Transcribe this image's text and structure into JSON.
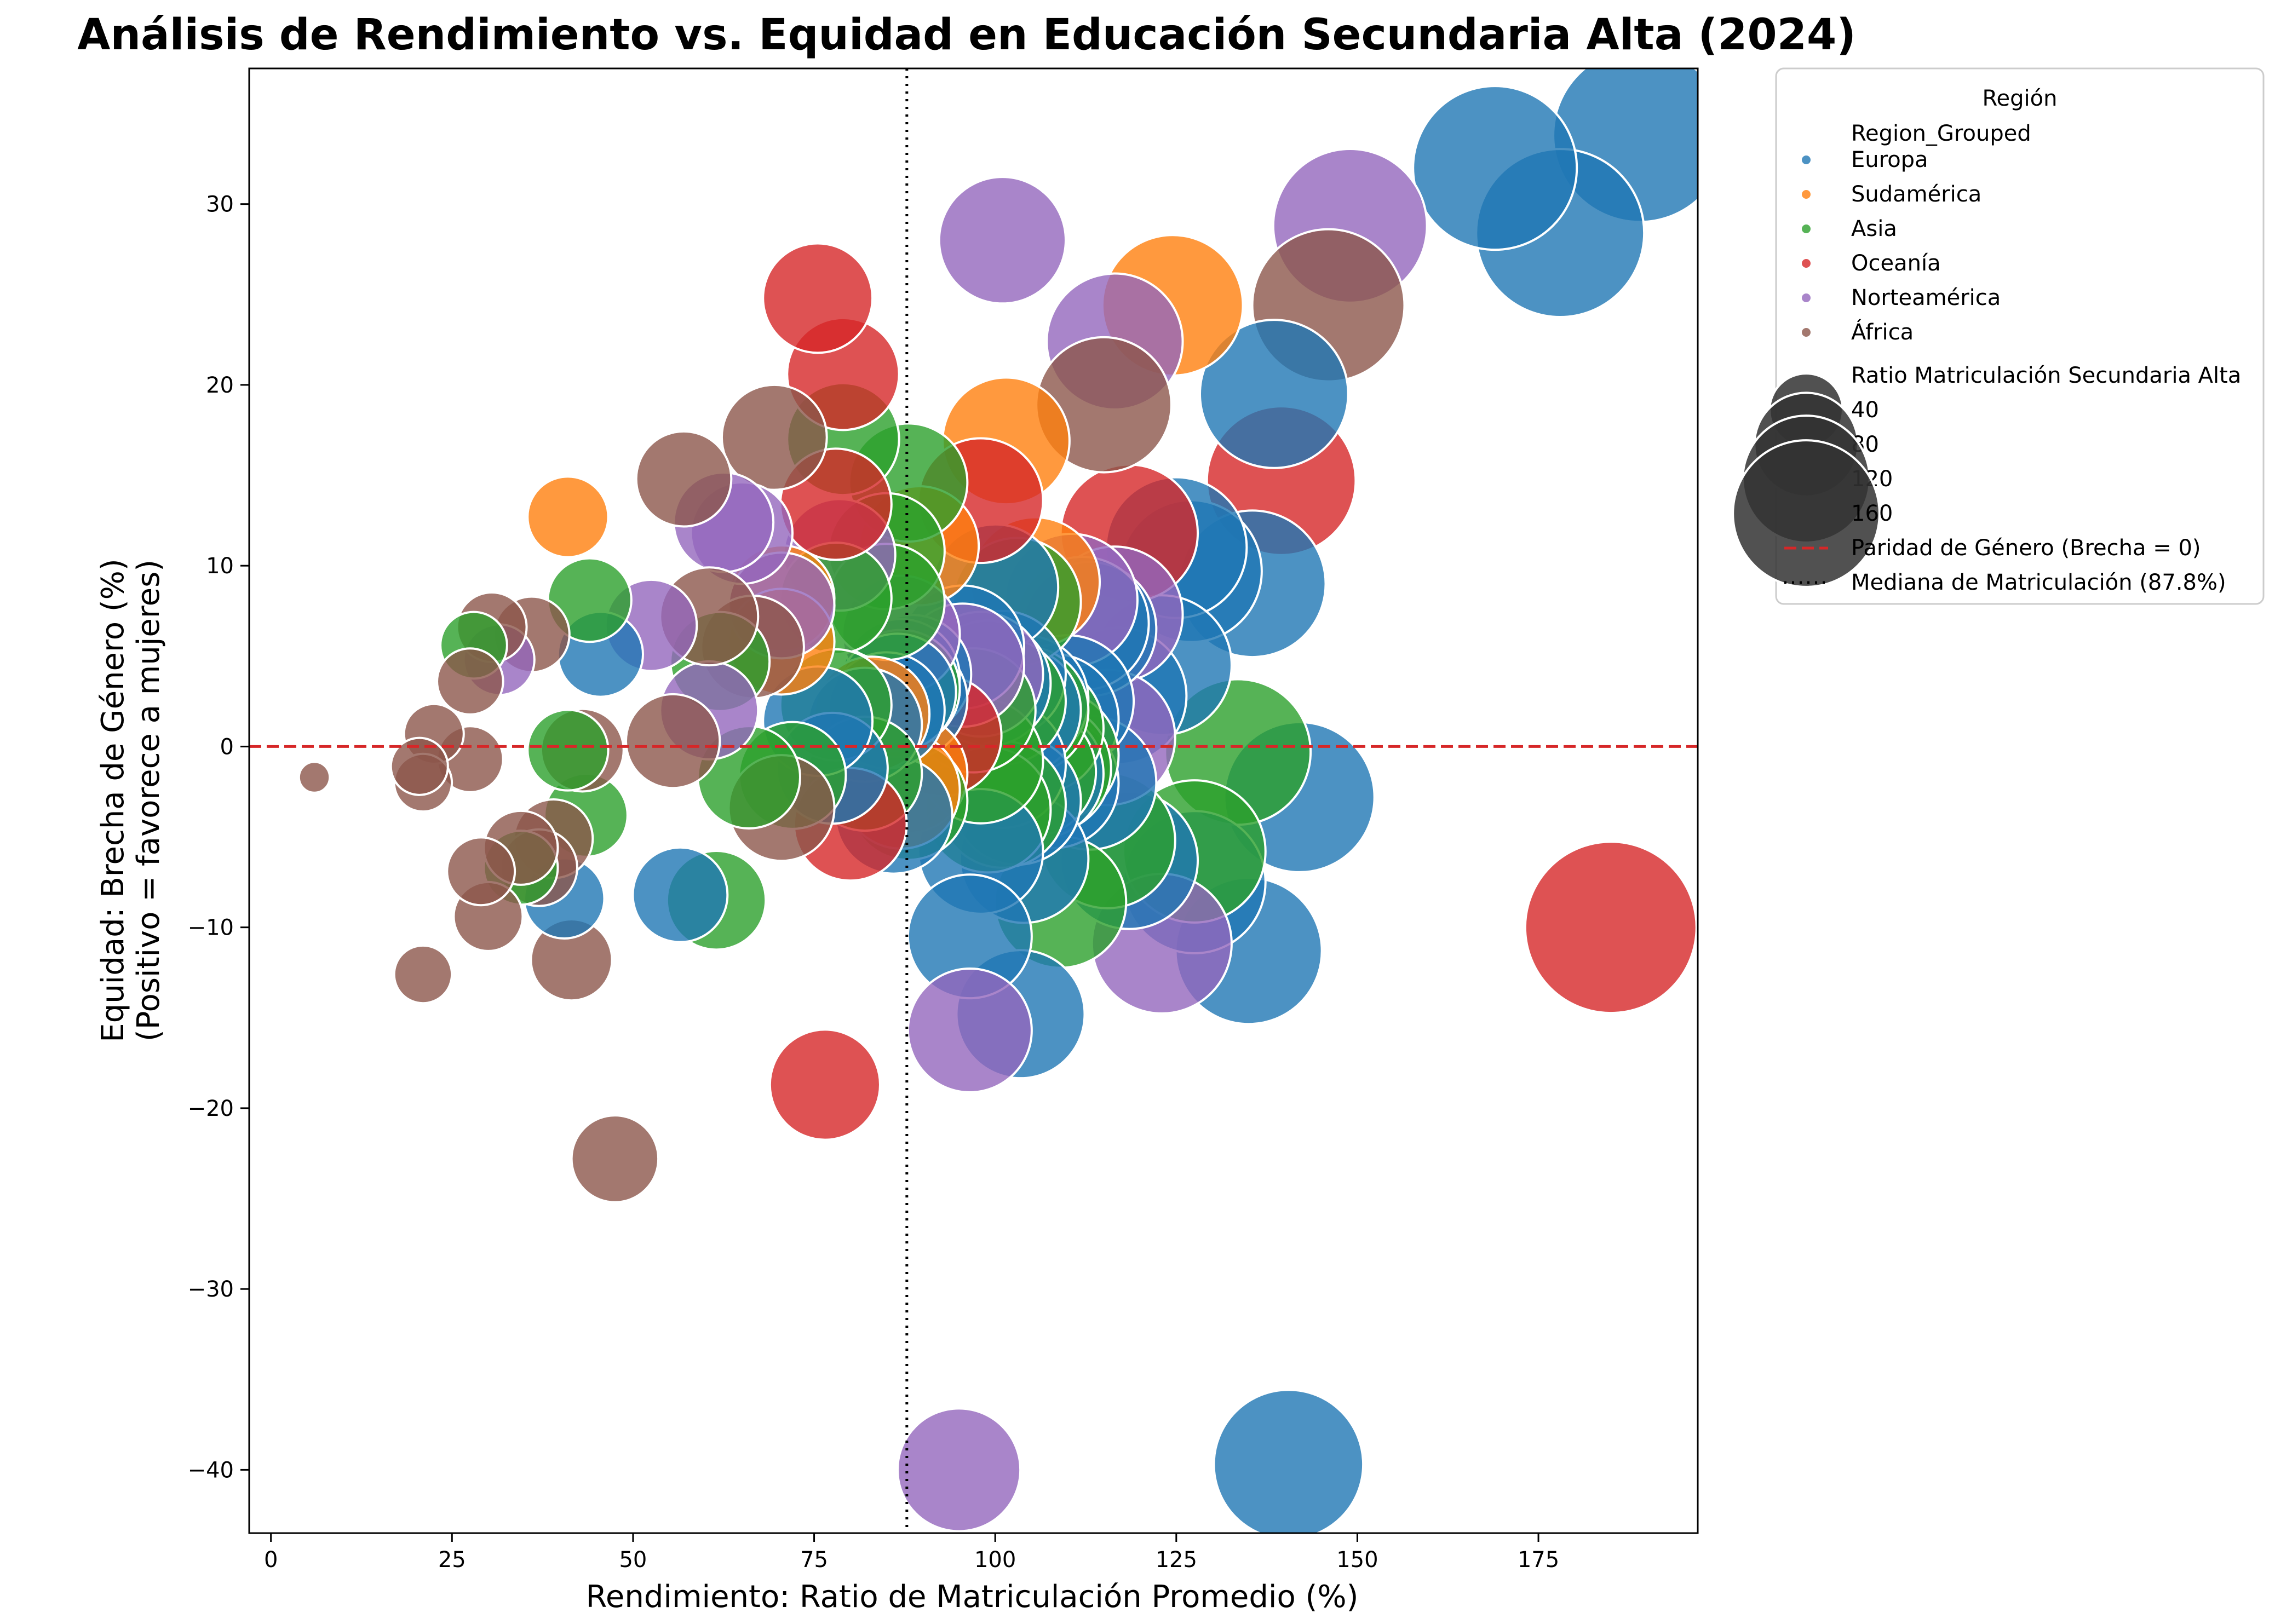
{
  "chart_data": {
    "type": "scatter",
    "title": "Análisis de Rendimiento vs. Equidad en Educación Secundaria Alta (2024)",
    "xlabel": "Rendimiento: Ratio de Matriculación Promedio (%)",
    "ylabel_lines": [
      "Equidad: Brecha de Género (%)",
      "(Positivo = favorece a mujeres)"
    ],
    "xlim": [
      -3,
      197
    ],
    "ylim": [
      -43.5,
      37.5
    ],
    "xticks": [
      0,
      25,
      50,
      75,
      100,
      125,
      150,
      175
    ],
    "yticks": [
      -40,
      -30,
      -20,
      -10,
      0,
      10,
      20,
      30
    ],
    "grid": false,
    "size_scale": "sqrt(enrollment ratio)",
    "reference_lines": [
      {
        "type": "horizontal",
        "value": 0,
        "color": "#d62728",
        "style": "dashed",
        "label": "Paridad de Género (Brecha = 0)"
      },
      {
        "type": "vertical",
        "value": 87.8,
        "color": "#000000",
        "style": "dotted",
        "label": "Mediana de Matriculación (87.8%)"
      }
    ],
    "legend": {
      "placement": "outside-right",
      "title": "Región",
      "hue_title": "Region_Grouped",
      "size_title": "Ratio Matriculación Secundaria Alta",
      "sizes": [
        40,
        80,
        120,
        160
      ]
    },
    "series": [
      {
        "name": "Europa",
        "color": "#1f77b4",
        "points": [
          [
            189,
            33.8
          ],
          [
            169,
            32
          ],
          [
            178,
            28.4
          ],
          [
            138.5,
            19.5
          ],
          [
            125,
            11
          ],
          [
            127,
            9.7
          ],
          [
            135.5,
            9
          ],
          [
            100,
            8.8
          ],
          [
            123,
            4.5
          ],
          [
            113,
            6.5
          ],
          [
            112,
            6.8
          ],
          [
            95.5,
            5.5
          ],
          [
            101,
            4
          ],
          [
            99,
            3.5
          ],
          [
            117,
            2.8
          ],
          [
            104,
            2.6
          ],
          [
            110,
            2.5
          ],
          [
            103,
            2
          ],
          [
            108,
            1.5
          ],
          [
            88,
            2.6
          ],
          [
            87,
            3.8
          ],
          [
            86.5,
            3
          ],
          [
            88.5,
            4
          ],
          [
            87,
            3.2
          ],
          [
            75.5,
            1.4
          ],
          [
            85,
            2
          ],
          [
            82,
            1.2
          ],
          [
            77.5,
            -1.2
          ],
          [
            86,
            -3.8
          ],
          [
            101,
            -1
          ],
          [
            103,
            -3
          ],
          [
            106,
            -1.5
          ],
          [
            108,
            -2
          ],
          [
            113,
            -2
          ],
          [
            98,
            -5.8
          ],
          [
            104,
            -6.2
          ],
          [
            118.5,
            -6.3
          ],
          [
            127.5,
            -7.5
          ],
          [
            142,
            -2.8
          ],
          [
            96.5,
            -10.5
          ],
          [
            103.5,
            -14.8
          ],
          [
            135,
            -11.3
          ],
          [
            140.5,
            -39.7
          ],
          [
            45.5,
            5.1
          ],
          [
            40.5,
            -8.4
          ],
          [
            56.5,
            -8.2
          ]
        ]
      },
      {
        "name": "Sudamérica",
        "color": "#ff7f0e",
        "points": [
          [
            124.5,
            24.4
          ],
          [
            101.5,
            16.9
          ],
          [
            89.5,
            11.1
          ],
          [
            105.5,
            9.1
          ],
          [
            41,
            12.7
          ],
          [
            70.5,
            8.2
          ],
          [
            70.5,
            5.8
          ],
          [
            88,
            -1.5
          ],
          [
            83,
            1.8
          ],
          [
            87,
            -2.4
          ]
        ]
      },
      {
        "name": "Asia",
        "color": "#2ca02c",
        "points": [
          [
            79,
            17
          ],
          [
            88,
            14.6
          ],
          [
            85,
            10.8
          ],
          [
            103,
            8
          ],
          [
            78,
            8.2
          ],
          [
            85,
            8
          ],
          [
            44,
            8.1
          ],
          [
            28,
            5.6
          ],
          [
            62,
            4.7
          ],
          [
            78,
            2.3
          ],
          [
            87,
            3.2
          ],
          [
            97,
            2
          ],
          [
            101,
            2.5
          ],
          [
            104,
            2
          ],
          [
            106,
            1
          ],
          [
            108,
            -0.5
          ],
          [
            98,
            -0.8
          ],
          [
            105,
            -1.4
          ],
          [
            107,
            -1.2
          ],
          [
            99,
            -3.5
          ],
          [
            101,
            -3.2
          ],
          [
            88,
            -3
          ],
          [
            82,
            -1.5
          ],
          [
            72,
            -1.6
          ],
          [
            66,
            -1.7
          ],
          [
            41,
            -0.2
          ],
          [
            43.5,
            -3.8
          ],
          [
            34.5,
            -6.7
          ],
          [
            61.5,
            -8.5
          ],
          [
            109,
            -8.6
          ],
          [
            115.5,
            -5.2
          ],
          [
            127.5,
            -5.8
          ],
          [
            133.5,
            -0.3
          ]
        ]
      },
      {
        "name": "Oceanía",
        "color": "#d62728",
        "points": [
          [
            75.5,
            24.8
          ],
          [
            79,
            20.6
          ],
          [
            78,
            13.4
          ],
          [
            98,
            13.6
          ],
          [
            118.5,
            11.8
          ],
          [
            139.5,
            14.7
          ],
          [
            92.5,
            0.6
          ],
          [
            80,
            -4.3
          ],
          [
            76.5,
            -18.7
          ],
          [
            185,
            -10
          ]
        ]
      },
      {
        "name": "Norteamérica",
        "color": "#9467bd",
        "points": [
          [
            101,
            28
          ],
          [
            149,
            28.8
          ],
          [
            116.5,
            22.4
          ],
          [
            62.5,
            12.4
          ],
          [
            65,
            11.8
          ],
          [
            78.5,
            10.6
          ],
          [
            70.5,
            7.8
          ],
          [
            52.5,
            6.7
          ],
          [
            110.5,
            8.1
          ],
          [
            116.5,
            7.3
          ],
          [
            87,
            6.2
          ],
          [
            95.5,
            4.5
          ],
          [
            98,
            4
          ],
          [
            115.5,
            0.5
          ],
          [
            60.5,
            2
          ],
          [
            31.5,
            4.8
          ],
          [
            123,
            -10.9
          ],
          [
            96.5,
            -15.7
          ],
          [
            95,
            -40
          ]
        ]
      },
      {
        "name": "África",
        "color": "#8c564b",
        "points": [
          [
            146,
            24.4
          ],
          [
            115,
            18.9
          ],
          [
            69.5,
            17.1
          ],
          [
            57,
            14.8
          ],
          [
            60.5,
            7.2
          ],
          [
            66.5,
            5.5
          ],
          [
            30.5,
            6.6
          ],
          [
            36,
            6.2
          ],
          [
            27.5,
            3.6
          ],
          [
            22.5,
            0.7
          ],
          [
            55.5,
            0.3
          ],
          [
            43,
            -0.2
          ],
          [
            27.5,
            -0.7
          ],
          [
            20.5,
            -1.1
          ],
          [
            21,
            -2
          ],
          [
            6,
            -1.7
          ],
          [
            70.5,
            -3.4
          ],
          [
            39,
            -5.1
          ],
          [
            34.5,
            -5.6
          ],
          [
            37,
            -6.7
          ],
          [
            29,
            -6.9
          ],
          [
            30,
            -9.4
          ],
          [
            41.5,
            -11.8
          ],
          [
            21,
            -12.6
          ],
          [
            47.5,
            -22.8
          ]
        ]
      }
    ]
  }
}
